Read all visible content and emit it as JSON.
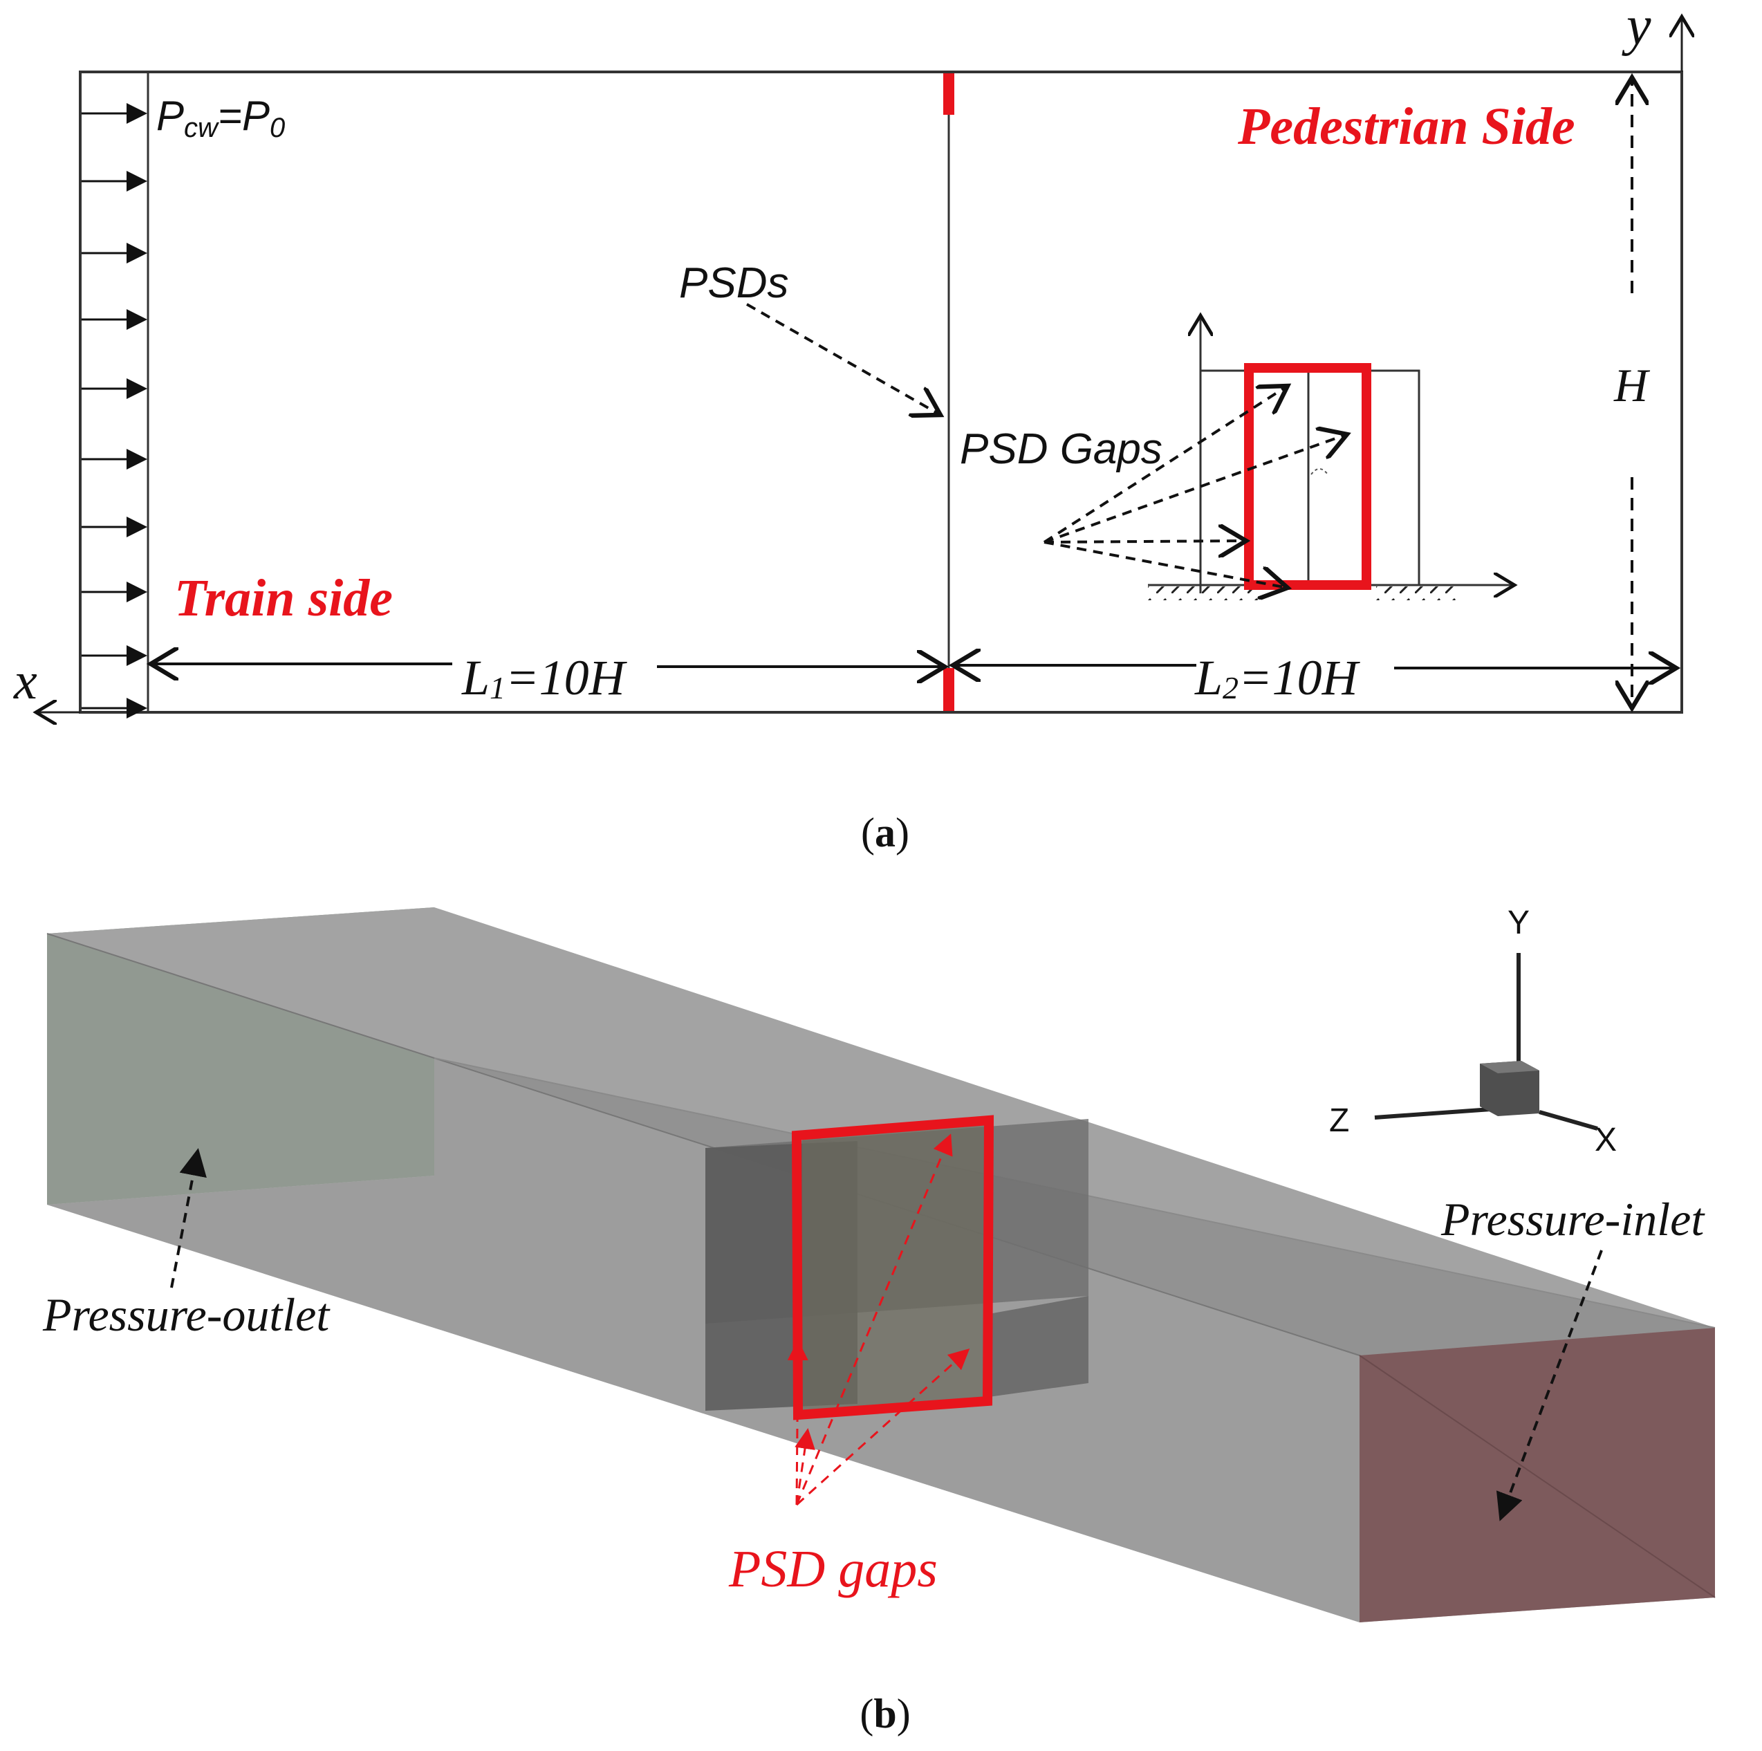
{
  "panel_a": {
    "inlet_bc_main": "P",
    "inlet_bc_sub": "cw",
    "inlet_bc_eq": "=P",
    "inlet_bc_rhs_sub": "0",
    "axis_x": "x",
    "axis_y": "y",
    "psds_label": "PSDs",
    "psd_gaps_label": "PSD Gaps",
    "pedestrian_side": "Pedestrian Side",
    "train_side": "Train side",
    "height_label": "H",
    "l1_main": "L",
    "l1_sub": "1",
    "l1_rest": "=10H",
    "l2_main": "L",
    "l2_sub": "2",
    "l2_rest": "=10H",
    "caption_open": "(",
    "caption_letter": "a",
    "caption_close": ")"
  },
  "panel_b": {
    "pressure_outlet": "Pressure-outlet",
    "pressure_inlet": "Pressure-inlet",
    "psd_gaps": "PSD gaps",
    "axis_Y": "Y",
    "axis_Z": "Z",
    "axis_X": "X",
    "caption_open": "(",
    "caption_letter": "b",
    "caption_close": ")"
  },
  "colors": {
    "accent_red": "#e8141c",
    "line": "#222222",
    "outlet_face": "#7f917f",
    "inlet_face": "#7d5a5c",
    "box_gray": "#a3a3a3"
  }
}
